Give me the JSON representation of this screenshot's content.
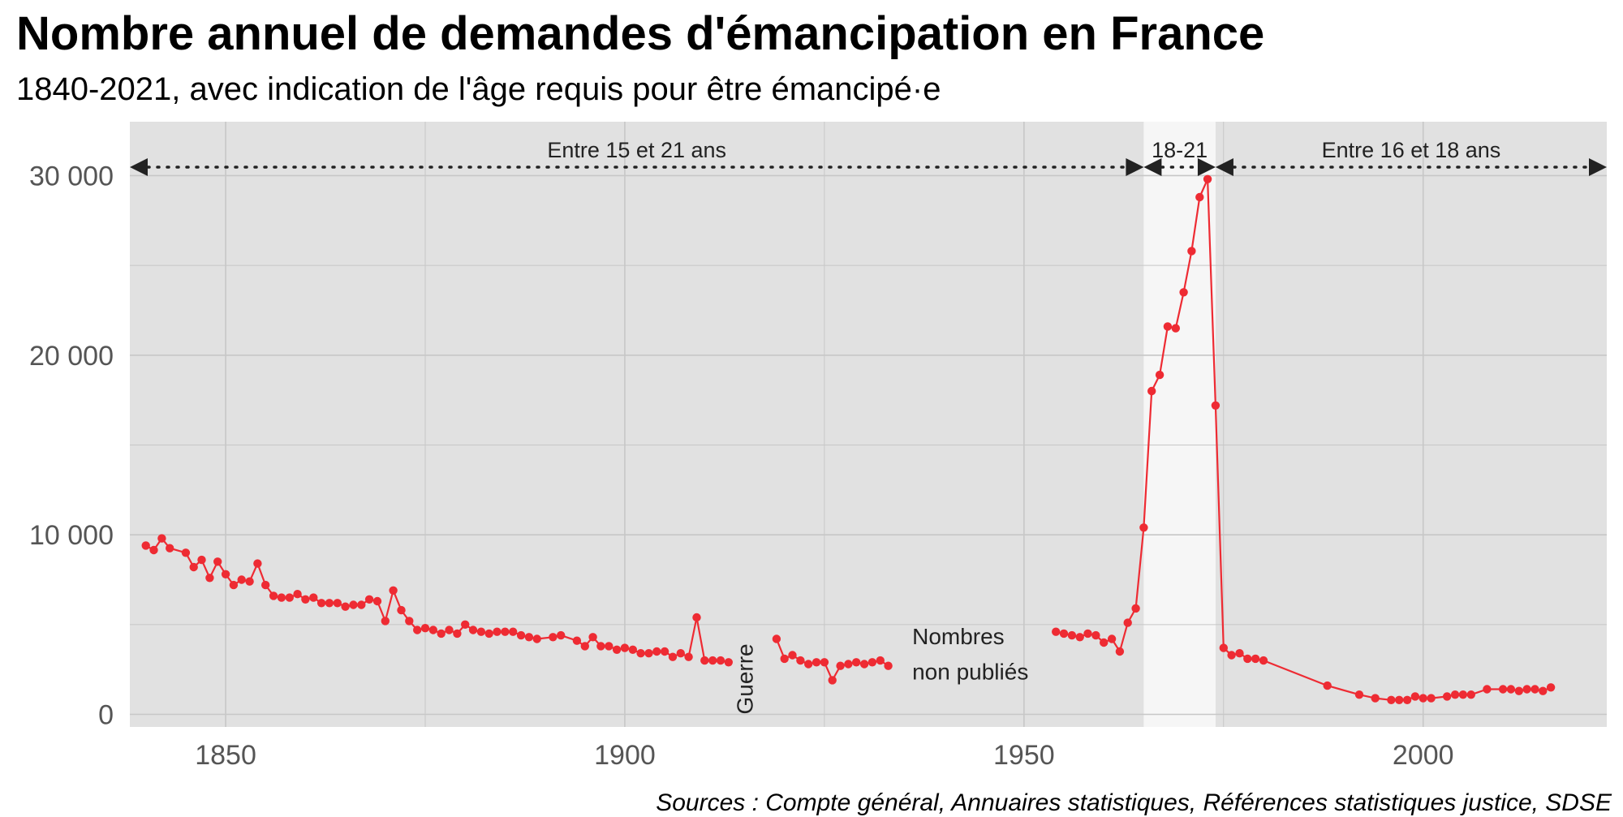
{
  "title": "Nombre annuel de demandes d'émancipation en France",
  "subtitle": "1840-2021, avec indication de l'âge requis pour être émancipé·e",
  "caption": "Sources : Compte général, Annuaires statistiques, Références statistiques justice, SDSE",
  "colors": {
    "panel": "#e1e1e1",
    "highlight_band": "#f6f6f6",
    "grid": "#c7c7c7",
    "series": "#ee2b33",
    "text": "#222222",
    "axis_text": "#555555"
  },
  "chart_data": {
    "type": "line",
    "title": "Nombre annuel de demandes d'émancipation en France",
    "subtitle": "1840-2021, avec indication de l'âge requis pour être émancipé·e",
    "xlabel": "",
    "ylabel": "",
    "xlim": [
      1838,
      2023
    ],
    "ylim": [
      -700,
      33000
    ],
    "x_ticks": [
      1850,
      1900,
      1950,
      2000
    ],
    "x_tick_labels": [
      "1850",
      "1900",
      "1950",
      "2000"
    ],
    "y_ticks": [
      0,
      10000,
      20000,
      30000
    ],
    "y_tick_labels": [
      "0",
      "10 000",
      "20 000",
      "30 000"
    ],
    "grid": true,
    "legend": "none",
    "markers": true,
    "series": [
      {
        "segments": [
          [
            [
              1840,
              9400
            ],
            [
              1841,
              9150
            ],
            [
              1842,
              9800
            ],
            [
              1843,
              9250
            ],
            [
              1845,
              9000
            ],
            [
              1846,
              8200
            ],
            [
              1847,
              8600
            ],
            [
              1848,
              7600
            ],
            [
              1849,
              8500
            ],
            [
              1850,
              7800
            ],
            [
              1851,
              7200
            ],
            [
              1852,
              7500
            ],
            [
              1853,
              7400
            ],
            [
              1854,
              8400
            ],
            [
              1855,
              7200
            ],
            [
              1856,
              6600
            ],
            [
              1857,
              6500
            ],
            [
              1858,
              6500
            ],
            [
              1859,
              6700
            ],
            [
              1860,
              6400
            ],
            [
              1861,
              6500
            ],
            [
              1862,
              6200
            ],
            [
              1863,
              6200
            ],
            [
              1864,
              6200
            ],
            [
              1865,
              6000
            ],
            [
              1866,
              6100
            ],
            [
              1867,
              6100
            ],
            [
              1868,
              6400
            ],
            [
              1869,
              6300
            ],
            [
              1870,
              5200
            ],
            [
              1871,
              6900
            ],
            [
              1872,
              5800
            ],
            [
              1873,
              5200
            ],
            [
              1874,
              4700
            ],
            [
              1875,
              4800
            ],
            [
              1876,
              4700
            ],
            [
              1877,
              4500
            ],
            [
              1878,
              4700
            ],
            [
              1879,
              4500
            ],
            [
              1880,
              5000
            ],
            [
              1881,
              4700
            ],
            [
              1882,
              4600
            ],
            [
              1883,
              4500
            ],
            [
              1884,
              4600
            ],
            [
              1885,
              4600
            ],
            [
              1886,
              4600
            ],
            [
              1887,
              4400
            ],
            [
              1888,
              4300
            ],
            [
              1889,
              4200
            ],
            [
              1891,
              4300
            ],
            [
              1892,
              4400
            ],
            [
              1894,
              4100
            ],
            [
              1895,
              3800
            ],
            [
              1896,
              4300
            ],
            [
              1897,
              3800
            ],
            [
              1898,
              3800
            ],
            [
              1899,
              3600
            ],
            [
              1900,
              3700
            ],
            [
              1901,
              3600
            ],
            [
              1902,
              3400
            ],
            [
              1903,
              3400
            ],
            [
              1904,
              3500
            ],
            [
              1905,
              3500
            ],
            [
              1906,
              3200
            ],
            [
              1907,
              3400
            ],
            [
              1908,
              3200
            ],
            [
              1909,
              5400
            ],
            [
              1910,
              3000
            ],
            [
              1911,
              3000
            ],
            [
              1912,
              3000
            ],
            [
              1913,
              2900
            ]
          ],
          [
            [
              1919,
              4200
            ],
            [
              1920,
              3100
            ],
            [
              1921,
              3300
            ],
            [
              1922,
              3000
            ],
            [
              1923,
              2800
            ],
            [
              1924,
              2900
            ],
            [
              1925,
              2900
            ],
            [
              1926,
              1900
            ],
            [
              1927,
              2700
            ],
            [
              1928,
              2800
            ],
            [
              1929,
              2900
            ],
            [
              1930,
              2800
            ],
            [
              1931,
              2900
            ],
            [
              1932,
              3000
            ],
            [
              1933,
              2700
            ]
          ],
          [
            [
              1954,
              4600
            ],
            [
              1955,
              4500
            ],
            [
              1956,
              4400
            ],
            [
              1957,
              4300
            ],
            [
              1958,
              4500
            ],
            [
              1959,
              4400
            ],
            [
              1960,
              4000
            ],
            [
              1961,
              4200
            ],
            [
              1962,
              3500
            ],
            [
              1963,
              5100
            ],
            [
              1964,
              5900
            ],
            [
              1965,
              10400
            ],
            [
              1966,
              18000
            ],
            [
              1967,
              18900
            ],
            [
              1968,
              21600
            ],
            [
              1969,
              21500
            ],
            [
              1970,
              23500
            ],
            [
              1971,
              25800
            ],
            [
              1972,
              28800
            ],
            [
              1973,
              29800
            ],
            [
              1974,
              17200
            ],
            [
              1975,
              3700
            ],
            [
              1976,
              3300
            ],
            [
              1977,
              3400
            ],
            [
              1978,
              3100
            ],
            [
              1979,
              3100
            ],
            [
              1980,
              3000
            ],
            [
              1988,
              1600
            ],
            [
              1992,
              1100
            ],
            [
              1994,
              900
            ],
            [
              1996,
              800
            ],
            [
              1997,
              800
            ],
            [
              1998,
              800
            ],
            [
              1999,
              1000
            ],
            [
              2000,
              900
            ],
            [
              2001,
              900
            ],
            [
              2003,
              1000
            ],
            [
              2004,
              1100
            ],
            [
              2005,
              1100
            ],
            [
              2006,
              1100
            ],
            [
              2008,
              1400
            ],
            [
              2010,
              1400
            ],
            [
              2011,
              1400
            ],
            [
              2012,
              1300
            ],
            [
              2013,
              1400
            ],
            [
              2014,
              1400
            ],
            [
              2015,
              1300
            ],
            [
              2016,
              1500
            ]
          ]
        ]
      }
    ],
    "age_periods": [
      {
        "label": "Entre 15 et 21 ans",
        "start": 1838,
        "end": 1965
      },
      {
        "label": "18-21",
        "start": 1965,
        "end": 1974
      },
      {
        "label": "Entre 16 et 18 ans",
        "start": 1974,
        "end": 2023
      }
    ],
    "highlight_band": [
      1965,
      1974
    ],
    "annotations": [
      {
        "id": "guerre",
        "text": "Guerre",
        "x": 1916,
        "y": 0,
        "rotation": -90
      },
      {
        "id": "nombres1",
        "text": "Nombres",
        "x": 1936,
        "y": 3900
      },
      {
        "id": "nombres2",
        "text": "non publiés",
        "x": 1936,
        "y": 1950
      }
    ]
  }
}
